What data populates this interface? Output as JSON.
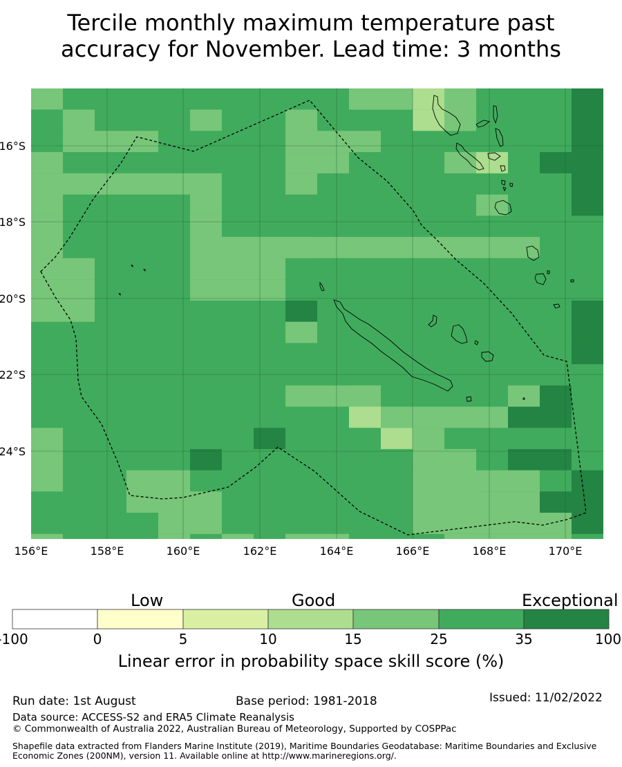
{
  "title": "Tercile monthly maximum temperature past\naccuracy for November. Lead time: 3 months",
  "map": {
    "lon_ticks": [
      "156°E",
      "158°E",
      "160°E",
      "162°E",
      "164°E",
      "166°E",
      "168°E",
      "170°E"
    ],
    "lat_ticks": [
      "16°S",
      "18°S",
      "20°S",
      "22°S",
      "24°S"
    ]
  },
  "colorbar": {
    "categories": [
      "Low",
      "Good",
      "Exceptional"
    ],
    "ticks": [
      "-100",
      "0",
      "5",
      "10",
      "15",
      "25",
      "35",
      "100"
    ],
    "colors": [
      "#ffffff",
      "#ffffcc",
      "#d9f0a3",
      "#addd8e",
      "#78c679",
      "#41ab5d",
      "#238443"
    ],
    "label": "Linear error in probability space skill score (%)"
  },
  "footer": {
    "run_date": "Run date: 1st August",
    "base_period": "Base period: 1981-2018",
    "issued": "Issued: 11/02/2022",
    "data_source": "Data source: ACCESS-S2 and ERA5 Climate Reanalysis",
    "copyright": "© Commonwealth of Australia 2022, Australian Bureau of Meteorology, Supported by COSPPac",
    "shapefile": "Shapefile data extracted from Flanders Marine Institute (2019), Maritime Boundaries Geodatabase: Maritime Boundaries and Exclusive Economic Zones (200NM), version 11. Available online at http://www.marineregions.org/."
  }
}
